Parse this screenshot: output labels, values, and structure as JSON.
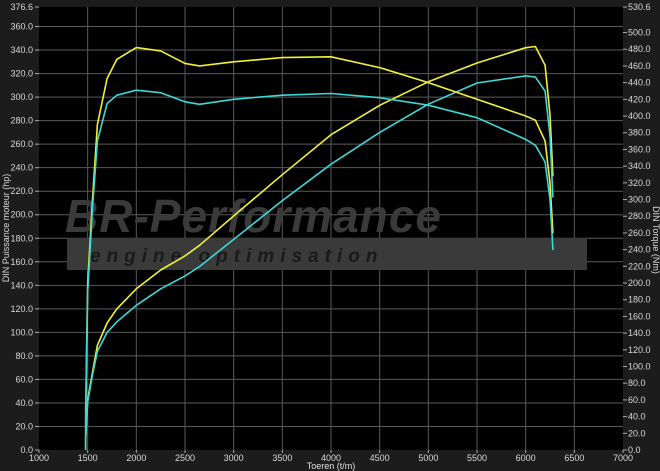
{
  "chart_data": {
    "type": "line",
    "xlabel": "Toeren (t/m)",
    "ylabel_left": "DIN Puissance moteur (hp)",
    "ylabel_right": "DIN Torque (Nm)",
    "xlim": [
      1000,
      7000
    ],
    "ylim_left": [
      0,
      376.6
    ],
    "ylim_right": [
      0,
      530.6
    ],
    "x_ticks": [
      "1000",
      "1500",
      "2000",
      "2500",
      "3000",
      "3500",
      "4000",
      "4500",
      "5000",
      "5500",
      "6000",
      "6500",
      "7000"
    ],
    "y_left_ticks": [
      "0.0",
      "20.0",
      "40.0",
      "60.0",
      "80.0",
      "100.0",
      "120.0",
      "140.0",
      "160.0",
      "180.0",
      "200.0",
      "220.0",
      "240.0",
      "260.0",
      "280.0",
      "300.0",
      "320.0",
      "340.0",
      "360.0",
      "376.6"
    ],
    "y_right_ticks": [
      "0.0",
      "20.0",
      "40.0",
      "60.0",
      "80.0",
      "100.0",
      "120.0",
      "140.0",
      "160.0",
      "180.0",
      "200.0",
      "220.0",
      "240.0",
      "260.0",
      "280.0",
      "300.0",
      "320.0",
      "340.0",
      "360.0",
      "380.0",
      "400.0",
      "420.0",
      "440.0",
      "460.0",
      "480.0",
      "500.0",
      "530.6"
    ],
    "grid": true,
    "background": "#000000",
    "x": [
      1480,
      1500,
      1550,
      1600,
      1700,
      1800,
      2000,
      2250,
      2500,
      2650,
      3000,
      3500,
      4000,
      4500,
      5000,
      5500,
      6000,
      6100,
      6200,
      6250,
      6280
    ],
    "series": [
      {
        "axis": "left",
        "color": "#f2f03a",
        "values": [
          10.5,
          43,
          66,
          89,
          108,
          120,
          137,
          153,
          165,
          174,
          199,
          234,
          268,
          293,
          313,
          329,
          342,
          343,
          327,
          285,
          233
        ]
      },
      {
        "axis": "left",
        "color": "#3ed8d8",
        "values": [
          10.5,
          41,
          64,
          84,
          100,
          109,
          123,
          137,
          148,
          156,
          179,
          212,
          243,
          270,
          294,
          312,
          318,
          317,
          305,
          267,
          215
        ]
      },
      {
        "axis": "right",
        "color": "#f2f03a",
        "values": [
          50,
          200,
          300,
          390,
          445,
          468,
          482,
          478,
          463,
          460,
          465,
          470,
          471,
          458,
          440,
          420,
          400,
          395,
          370,
          320,
          260
        ]
      },
      {
        "axis": "right",
        "color": "#3ed8d8",
        "values": [
          50,
          190,
          290,
          370,
          415,
          425,
          431,
          428,
          417,
          414,
          420,
          425,
          427,
          422,
          413,
          398,
          372,
          365,
          345,
          300,
          240
        ]
      }
    ]
  },
  "watermark": {
    "title": "BR-Performance",
    "subtitle": "engine optimisation"
  }
}
